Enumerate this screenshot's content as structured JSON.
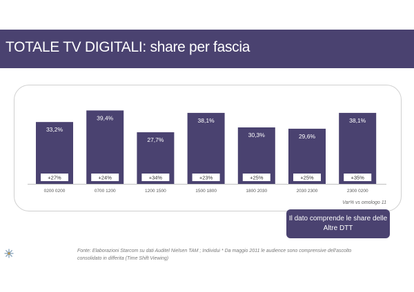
{
  "header": {
    "title": "TOTALE TV DIGITALI: share per fascia"
  },
  "chart_data": {
    "type": "bar",
    "categories": [
      "0200 0200",
      "0700 1200",
      "1200 1500",
      "1500 1800",
      "1800 2030",
      "2030 2300",
      "2300 0200"
    ],
    "values": [
      33.2,
      39.4,
      27.7,
      38.1,
      30.3,
      29.6,
      38.1
    ],
    "value_labels": [
      "33,2%",
      "39,4%",
      "27,7%",
      "38,1%",
      "30,3%",
      "29,6%",
      "38,1%"
    ],
    "change_labels": [
      "+27%",
      "+24%",
      "+34%",
      "+23%",
      "+25%",
      "+25%",
      "+35%"
    ],
    "ylim": [
      0,
      42.5
    ],
    "xlabel": "",
    "ylabel": "",
    "grid": false,
    "bar_color": "#4a4270"
  },
  "notes": {
    "variation": "Var% vs omologo 11",
    "callout": "Il dato comprende le share delle Altre DTT",
    "source": "Fonte: Elaborazioni Starcom su dati Auditel Nielsen TAM ; Individui * Da  maggio 2011 le audience sono comprensive dell'ascolto consolidato in differita (Time Shift Viewing)"
  },
  "icons": {
    "logo": "starburst-logo-icon"
  },
  "colors": {
    "primary": "#4a4270",
    "text_on_primary": "#ffffff"
  }
}
